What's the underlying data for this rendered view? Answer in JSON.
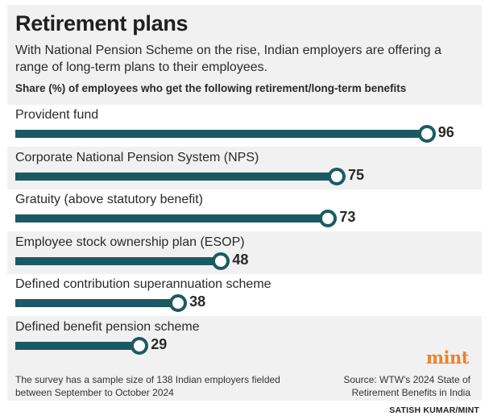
{
  "header": {
    "title": "Retirement plans",
    "subtitle": "With National Pension Scheme on the rise, Indian employers are offering a range of long-term plans to their employees."
  },
  "chart_data": {
    "type": "bar",
    "orientation": "horizontal",
    "title": "Share (%) of employees who get the following retirement/long-term benefits",
    "categories": [
      "Provident fund",
      "Corporate National Pension System (NPS)",
      "Gratuity (above statutory benefit)",
      "Employee stock ownership plan (ESOP)",
      "Defined contribution superannuation scheme",
      "Defined benefit pension scheme"
    ],
    "values": [
      96,
      75,
      73,
      48,
      38,
      29
    ],
    "value_labels": [
      "96",
      "75",
      "73",
      "48",
      "38",
      "29"
    ],
    "xlim": [
      0,
      100
    ],
    "xlabel": "",
    "ylabel": "",
    "grid": false,
    "legend": "none"
  },
  "footer": {
    "note": "The survey has a sample size of 138 Indian employers fielded between September to October 2024",
    "source": "Source: WTW's 2024 State of Retirement Benefits in India",
    "logo": "mint",
    "credit": "SATISH KUMAR/MINT"
  },
  "colors": {
    "bar": "#1c5a63",
    "background": "#f1f1f1",
    "band": "#ffffff",
    "logo": "#f07f2a"
  }
}
